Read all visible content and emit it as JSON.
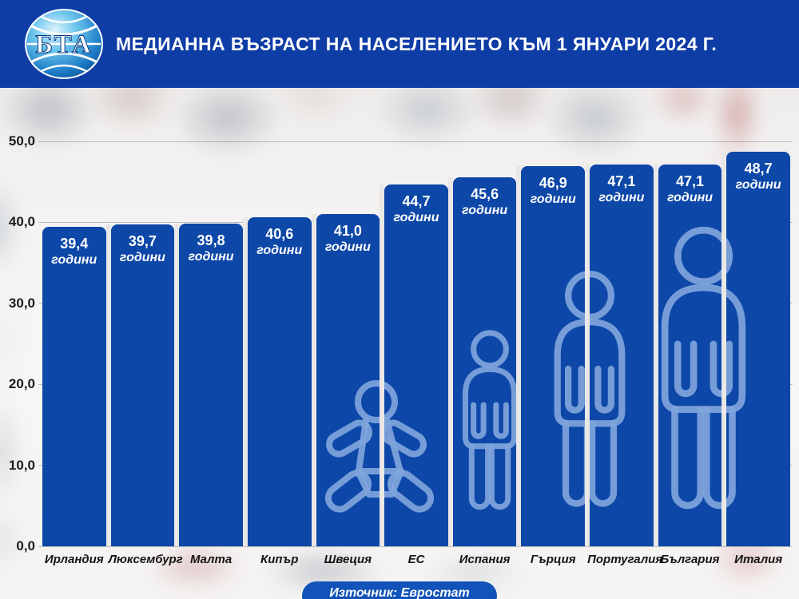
{
  "header": {
    "logo_text": "БТА",
    "title": "МЕДИАННА ВЪЗРАСТ НА НАСЕЛЕНИЕТО КЪМ 1 ЯНУАРИ 2024 Г."
  },
  "source": {
    "label": "Източник: Евростат"
  },
  "chart_data": {
    "type": "bar",
    "title": "МЕДИАННА ВЪЗРАСТ НА НАСЕЛЕНИЕТО КЪМ 1 ЯНУАРИ 2024 Г.",
    "categories": [
      "Ирландия",
      "Люксембург",
      "Малта",
      "Кипър",
      "Швеция",
      "ЕС",
      "Испания",
      "Гърция",
      "Португалия",
      "България",
      "Италия"
    ],
    "values": [
      39.4,
      39.7,
      39.8,
      40.6,
      41.0,
      44.7,
      45.6,
      46.9,
      47.1,
      47.1,
      48.7
    ],
    "value_labels": [
      "39,4",
      "39,7",
      "39,8",
      "40,6",
      "41,0",
      "44,7",
      "45,6",
      "46,9",
      "47,1",
      "47,1",
      "48,7"
    ],
    "unit_label": "години",
    "ylabel": "",
    "xlabel": "",
    "yticks": [
      "0,0",
      "10,0",
      "20,0",
      "30,0",
      "40,0",
      "50,0"
    ],
    "ytick_values": [
      0,
      10,
      20,
      30,
      40,
      50
    ],
    "ylim": [
      0,
      50
    ],
    "grid": true,
    "legend": false,
    "source": "Източник: Евростат",
    "decorations": [
      "baby-pictogram",
      "toddler-pictogram",
      "adult-pictogram",
      "tall-adult-pictogram"
    ]
  },
  "colors": {
    "header_bg": "#0f3da6",
    "bar": "#0d47a8",
    "figure_outline": "#7fa5dc",
    "pill": "#1253ba"
  }
}
